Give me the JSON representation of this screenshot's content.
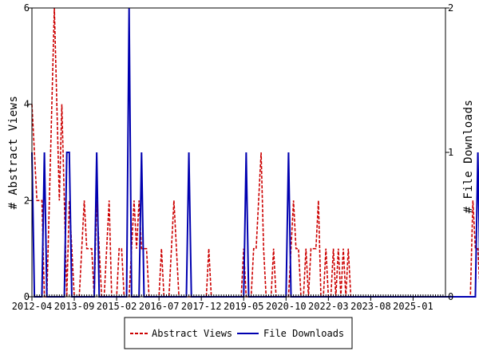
{
  "chart_data": {
    "type": "line",
    "title": "",
    "ylabel_left": "# Abstract Views",
    "ylabel_right": "# File Downloads",
    "xlabel": "",
    "x_tick_labels": [
      "2012-04",
      "2013-09",
      "2015-02",
      "2016-07",
      "2017-12",
      "2019-05",
      "2020-10",
      "2022-03",
      "2023-08",
      "2025-01"
    ],
    "y_left": {
      "min": 0,
      "max": 6,
      "tick_values": [
        0,
        2,
        4,
        6
      ],
      "tick_labels": [
        "0",
        "2",
        "4",
        "6"
      ]
    },
    "y_right": {
      "min": 0,
      "max": 2,
      "tick_values": [
        0,
        1,
        2
      ],
      "tick_labels": [
        "0",
        "1",
        "2"
      ]
    },
    "grid": false,
    "legend_position": "bottom-center",
    "x_period": "monthly",
    "x_start": "2012-04",
    "series": [
      {
        "name": "Abstract Views",
        "axis": "left",
        "color": "#cc0000",
        "style": "dashed",
        "values": [
          4,
          3,
          2,
          2,
          2,
          0,
          0,
          2,
          4,
          6,
          4,
          2,
          4,
          2,
          0,
          2,
          1,
          0,
          0,
          0,
          1,
          2,
          1,
          1,
          1,
          0,
          2,
          1,
          0,
          0,
          1,
          2,
          0,
          0,
          0,
          1,
          1,
          0,
          0,
          0,
          1,
          2,
          1,
          2,
          1,
          1,
          1,
          0,
          0,
          0,
          0,
          0,
          1,
          0,
          0,
          0,
          1,
          2,
          1,
          0,
          0,
          0,
          0,
          0,
          0,
          0,
          0,
          0,
          0,
          0,
          0,
          1,
          0,
          0,
          0,
          0,
          0,
          0,
          0,
          0,
          0,
          0,
          0,
          0,
          0,
          1,
          0,
          0,
          0,
          1,
          1,
          2,
          3,
          1,
          0,
          0,
          0,
          1,
          0,
          0,
          0,
          0,
          0,
          0,
          1,
          2,
          1,
          1,
          0,
          0,
          1,
          0,
          1,
          1,
          1,
          2,
          0,
          0,
          1,
          0,
          0,
          1,
          0,
          1,
          0,
          1,
          0,
          1,
          0,
          0,
          0,
          0,
          0,
          0,
          0,
          0,
          0,
          0,
          0,
          0,
          0,
          0,
          0,
          0,
          0,
          0,
          0,
          0,
          0,
          0,
          0,
          0,
          0,
          0,
          0,
          0,
          0,
          0,
          0,
          0,
          0,
          0,
          0,
          0,
          0,
          0,
          0,
          0,
          0,
          0,
          0,
          0,
          0,
          0,
          0,
          0,
          0,
          2,
          1,
          1,
          0,
          0,
          1,
          0,
          0,
          0
        ]
      },
      {
        "name": "File Downloads",
        "axis": "right",
        "color": "#0000b0",
        "style": "solid",
        "values": [
          1,
          0,
          0,
          0,
          0,
          1,
          0,
          0,
          0,
          0,
          0,
          0,
          0,
          0,
          1,
          1,
          0,
          0,
          0,
          0,
          0,
          0,
          0,
          0,
          0,
          0,
          1,
          0,
          0,
          0,
          0,
          0,
          0,
          0,
          0,
          0,
          0,
          0,
          0,
          2,
          0,
          0,
          0,
          0,
          1,
          0,
          0,
          0,
          0,
          0,
          0,
          0,
          0,
          0,
          0,
          0,
          0,
          0,
          0,
          0,
          0,
          0,
          0,
          1,
          0,
          0,
          0,
          0,
          0,
          0,
          0,
          0,
          0,
          0,
          0,
          0,
          0,
          0,
          0,
          0,
          0,
          0,
          0,
          0,
          0,
          0,
          1,
          0,
          0,
          0,
          0,
          0,
          0,
          0,
          0,
          0,
          0,
          0,
          0,
          0,
          0,
          0,
          0,
          1,
          0,
          0,
          0,
          0,
          0,
          0,
          0,
          0,
          0,
          0,
          0,
          0,
          0,
          0,
          0,
          0,
          0,
          0,
          0,
          0,
          0,
          0,
          0,
          0,
          0,
          0,
          0,
          0,
          0,
          0,
          0,
          0,
          0,
          0,
          0,
          0,
          0,
          0,
          0,
          0,
          0,
          0,
          0,
          0,
          0,
          0,
          0,
          0,
          0,
          0,
          0,
          0,
          0,
          0,
          0,
          0,
          0,
          0,
          0,
          0,
          0,
          0,
          0,
          0,
          0,
          0,
          0,
          0,
          0,
          0,
          0,
          0,
          0,
          0,
          0,
          1,
          0,
          0,
          0,
          1,
          0,
          0,
          0
        ]
      }
    ]
  }
}
